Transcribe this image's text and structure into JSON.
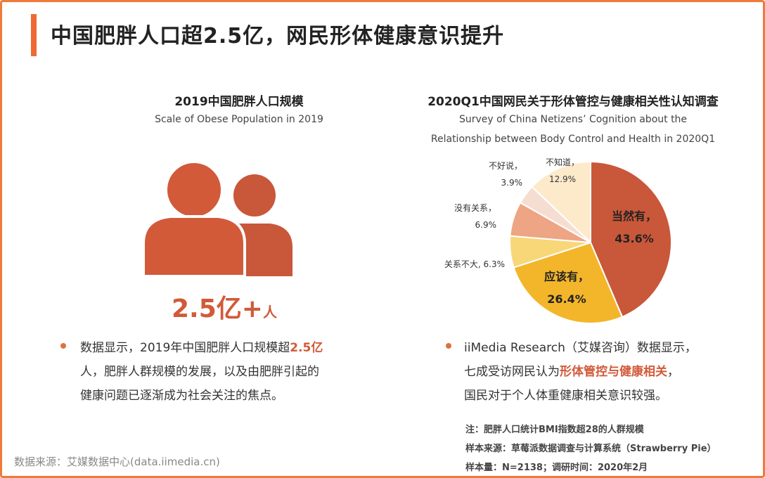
{
  "header": {
    "title": "中国肥胖人口超2.5亿，网民形体健康意识提升"
  },
  "left": {
    "title": "2019中国肥胖人口规模",
    "subtitle": "Scale of Obese Population in 2019",
    "big_value": "2.5亿+",
    "big_unit": "人",
    "para_line1_a": "数据显示，2019年中国肥胖人口规模超",
    "para_line1_hl": "2.5亿",
    "para_line2": "人，肥胖人群规模的发展，以及由肥胖引起的",
    "para_line3": "健康问题已逐渐成为社会关注的焦点。"
  },
  "right": {
    "title": "2020Q1中国网民关于形体管控与健康相关性认知调查",
    "subtitle_line1": "Survey of China Netizens’ Cognition about the",
    "subtitle_line2": "Relationship between Body Control and Health in 2020Q1",
    "para_line1": "iiMedia Research（艾媒咨询）数据显示，",
    "para_line2_a": "七成受访网民认为",
    "para_line2_hl": "形体管控与健康相关",
    "para_line2_b": "，",
    "para_line3": "国民对于个人体重健康相关意识较强。",
    "note1": "注：肥胖人口统计BMI指数超28的人群规模",
    "note2": "样本来源：草莓派数据调查与计算系统（Strawberry Pie）",
    "note3": "样本量：N=2138；调研时间：2020年2月"
  },
  "footer": {
    "source": "数据来源：艾媒数据中心(data.iimedia.cn)"
  },
  "chart_data": {
    "type": "pie",
    "title": "2020Q1中国网民关于形体管控与健康相关性认知调查",
    "slices": [
      {
        "label": "当然有",
        "value": 43.6,
        "display": "43.6%",
        "color": "#c9573a"
      },
      {
        "label": "应该有",
        "value": 26.4,
        "display": "26.4%",
        "color": "#f3b52a"
      },
      {
        "label": "关系不大",
        "value": 6.3,
        "display": "6.3%",
        "color": "#f8d778"
      },
      {
        "label": "没有关系",
        "value": 6.9,
        "display": "6.9%",
        "color": "#eda583"
      },
      {
        "label": "不好说",
        "value": 3.9,
        "display": "3.9%",
        "color": "#f6ddd2"
      },
      {
        "label": "不知道",
        "value": 12.9,
        "display": "12.9%",
        "color": "#fdeacb"
      }
    ]
  }
}
